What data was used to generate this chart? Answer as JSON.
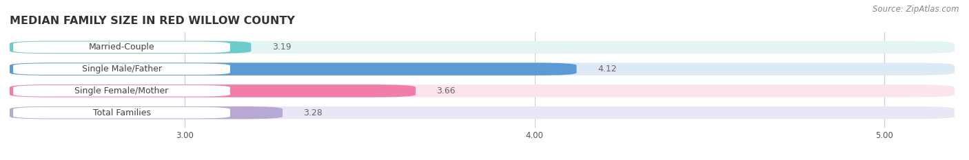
{
  "title": "MEDIAN FAMILY SIZE IN RED WILLOW COUNTY",
  "source": "Source: ZipAtlas.com",
  "categories": [
    "Married-Couple",
    "Single Male/Father",
    "Single Female/Mother",
    "Total Families"
  ],
  "values": [
    3.19,
    4.12,
    3.66,
    3.28
  ],
  "bar_colors": [
    "#6dcbcb",
    "#5b9bd5",
    "#f07daa",
    "#b8a8d5"
  ],
  "bar_bg_colors": [
    "#e4f4f4",
    "#ddeaf6",
    "#fce4ef",
    "#ebe6f5"
  ],
  "xlim_min": 2.5,
  "xlim_max": 5.2,
  "xticks": [
    3.0,
    4.0,
    5.0
  ],
  "xtick_labels": [
    "3.00",
    "4.00",
    "5.00"
  ],
  "title_fontsize": 11.5,
  "label_fontsize": 9,
  "value_fontsize": 9,
  "source_fontsize": 8.5,
  "bg_color": "#ffffff",
  "label_box_color": "#ffffff",
  "grid_color": "#cccccc",
  "text_color": "#444444",
  "value_color": "#666666",
  "source_color": "#888888"
}
